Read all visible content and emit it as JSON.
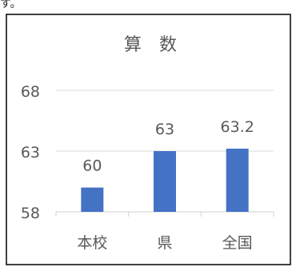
{
  "top_fragment": "す。",
  "chart_data": {
    "type": "bar",
    "title": "算　数",
    "categories": [
      "本校",
      "県",
      "全国"
    ],
    "values": [
      60,
      63,
      63.2
    ],
    "data_labels": [
      "60",
      "63",
      "63.2"
    ],
    "ylim": [
      58,
      68
    ],
    "yticks": [
      "58",
      "63",
      "68"
    ],
    "xlabel": "",
    "ylabel": "",
    "grid": true,
    "bar_color": "#4472c4",
    "text_color": "#595959",
    "grid_color": "#d9d9d9"
  }
}
